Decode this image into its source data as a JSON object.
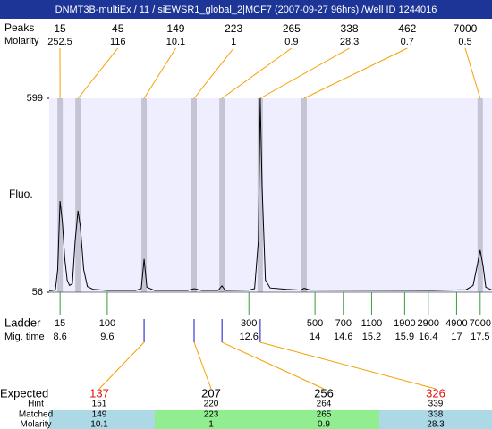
{
  "header": {
    "title": "DNMT3B-multiEx / 11  / siEWSR1_global_2|MCF7 (2007-09-27 96hrs) /Well ID 1244016"
  },
  "peaks": {
    "size_label": "Peaks",
    "molarity_label": "Molarity",
    "items": [
      {
        "size": 15,
        "molarity": 252.5,
        "time": 8.6
      },
      {
        "size": 45,
        "molarity": 116,
        "time": 8.98
      },
      {
        "size": 149,
        "molarity": 10.1,
        "time": 10.38
      },
      {
        "size": 223,
        "molarity": 1,
        "time": 11.44
      },
      {
        "size": 265,
        "molarity": 0.9,
        "time": 12.03
      },
      {
        "size": 338,
        "molarity": 28.3,
        "time": 12.84
      },
      {
        "size": 462,
        "molarity": 0.7,
        "time": 13.77
      },
      {
        "size": 7000,
        "molarity": 0.5,
        "time": 17.5
      }
    ]
  },
  "plot": {
    "ylabel": "Fluo.",
    "ylim": [
      56,
      599
    ],
    "yticks": [
      56,
      599
    ],
    "xlim": [
      8.37,
      17.75
    ],
    "trace": {
      "x": [
        8.37,
        8.5,
        8.55,
        8.6,
        8.65,
        8.7,
        8.75,
        8.8,
        8.86,
        8.92,
        8.98,
        9.03,
        9.1,
        9.18,
        9.3,
        9.6,
        10.2,
        10.32,
        10.38,
        10.44,
        10.6,
        11.3,
        11.44,
        11.6,
        11.95,
        12.03,
        12.1,
        12.6,
        12.72,
        12.8,
        12.84,
        12.88,
        12.95,
        13.05,
        13.4,
        13.7,
        13.77,
        13.9,
        16.5,
        17.2,
        17.35,
        17.45,
        17.5,
        17.56,
        17.62,
        17.75
      ],
      "y": [
        60,
        62,
        120,
        311,
        250,
        150,
        90,
        75,
        80,
        200,
        284,
        240,
        120,
        72,
        64,
        61,
        61,
        66,
        149,
        70,
        61,
        61,
        66,
        61,
        61,
        74,
        61,
        62,
        66,
        200,
        599,
        350,
        90,
        68,
        64,
        62,
        67,
        62,
        61,
        63,
        75,
        140,
        174,
        130,
        70,
        62
      ]
    }
  },
  "ladder": {
    "label": "Ladder",
    "time_label": "Mig. time",
    "sizes": [
      15,
      100,
      300,
      500,
      700,
      1100,
      1900,
      2900,
      4900,
      7000
    ],
    "times": [
      8.6,
      9.6,
      12.6,
      14,
      14.6,
      15.2,
      15.9,
      16.4,
      17,
      17.5
    ]
  },
  "expected": {
    "labels": [
      "Expected",
      "Hint",
      "Matched",
      "Molarity"
    ],
    "columns": [
      {
        "expected": 137,
        "hint": 151,
        "matched": 149,
        "molarity": 10.1,
        "time": 10.38,
        "color": "#e01010",
        "bg": "#add8e6"
      },
      {
        "expected": 207,
        "hint": 220,
        "matched": 223,
        "molarity": 1,
        "time": 11.44,
        "color": "#000000",
        "bg": "#90ee90"
      },
      {
        "expected": 256,
        "hint": 264,
        "matched": 265,
        "molarity": 0.9,
        "time": 12.03,
        "color": "#000000",
        "bg": "#90ee90"
      },
      {
        "expected": 326,
        "hint": 339,
        "matched": 338,
        "molarity": 28.3,
        "time": 12.84,
        "color": "#e01010",
        "bg": "#add8e6"
      }
    ]
  }
}
